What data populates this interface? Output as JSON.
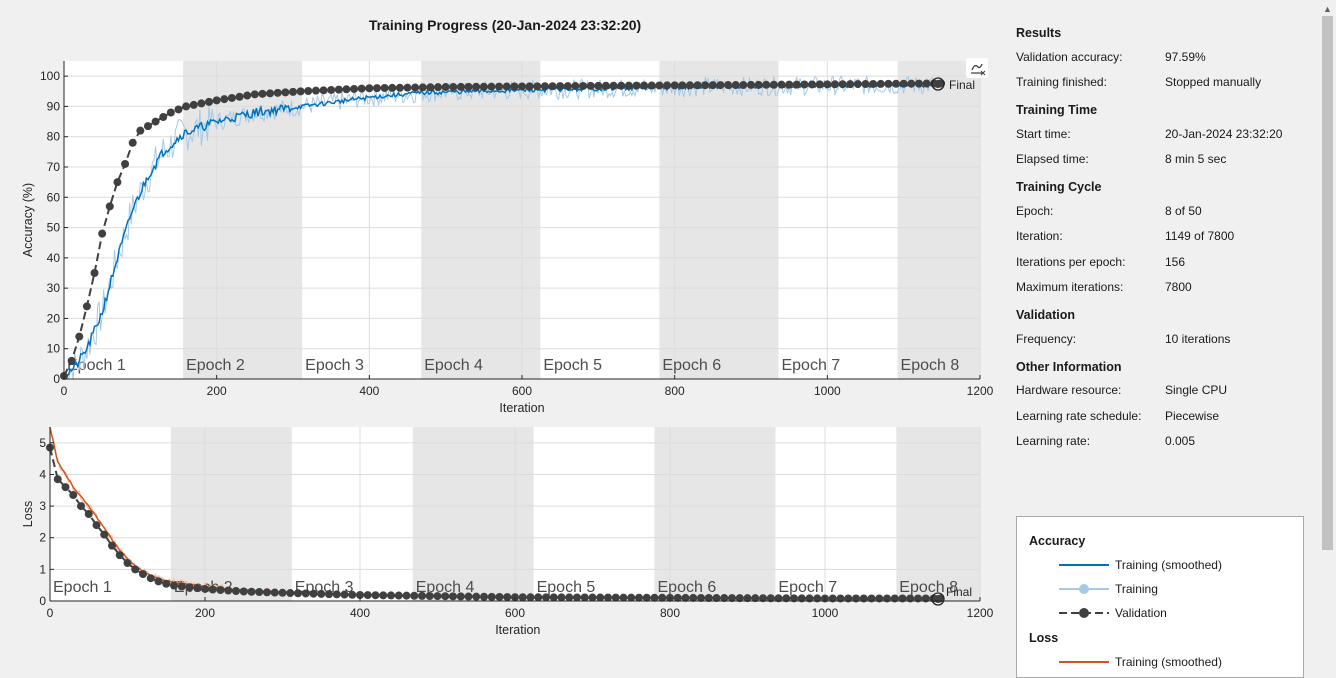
{
  "title": "Training Progress (20-Jan-2024 23:32:20)",
  "info": {
    "sections": [
      {
        "title": "Results",
        "rows": [
          {
            "k": "Validation accuracy:",
            "v": "97.59%"
          },
          {
            "k": "Training finished:",
            "v": "Stopped manually"
          }
        ]
      },
      {
        "title": "Training Time",
        "rows": [
          {
            "k": "Start time:",
            "v": "20-Jan-2024 23:32:20"
          },
          {
            "k": "Elapsed time:",
            "v": "8 min 5 sec"
          }
        ]
      },
      {
        "title": "Training Cycle",
        "rows": [
          {
            "k": "Epoch:",
            "v": "8 of 50"
          },
          {
            "k": "Iteration:",
            "v": "1149 of 7800"
          },
          {
            "k": "Iterations per epoch:",
            "v": "156"
          },
          {
            "k": "Maximum iterations:",
            "v": "7800"
          }
        ]
      },
      {
        "title": "Validation",
        "rows": [
          {
            "k": "Frequency:",
            "v": "10 iterations"
          }
        ]
      },
      {
        "title": "Other Information",
        "rows": [
          {
            "k": "Hardware resource:",
            "v": "Single CPU"
          },
          {
            "k": "Learning rate schedule:",
            "v": "Piecewise"
          },
          {
            "k": "Learning rate:",
            "v": "0.005"
          }
        ]
      }
    ]
  },
  "legend": {
    "accuracy_title": "Accuracy",
    "accuracy_items": [
      "Training (smoothed)",
      "Training",
      "Validation"
    ],
    "loss_title": "Loss",
    "loss_items": [
      "Training (smoothed)"
    ]
  },
  "colors": {
    "acc_smoothed": "#0072bd",
    "acc_training": "#a6c9e6",
    "loss_smoothed": "#d95319",
    "loss_training": "#f0b79a",
    "validation": "#404040",
    "epoch_shade": "#e6e6e6",
    "grid": "#dcdcdc"
  },
  "chart_data": [
    {
      "type": "line",
      "ylabel": "Accuracy (%)",
      "xlabel": "Iteration",
      "xlim": [
        0,
        1200
      ],
      "ylim": [
        0,
        105
      ],
      "x_ticks": [
        0,
        200,
        400,
        600,
        800,
        1000,
        1200
      ],
      "y_ticks": [
        0,
        10,
        20,
        30,
        40,
        50,
        60,
        70,
        80,
        90,
        100
      ],
      "grid": true,
      "epoch_labels": [
        "Epoch 1",
        "Epoch 2",
        "Epoch 3",
        "Epoch 4",
        "Epoch 5",
        "Epoch 6",
        "Epoch 7",
        "Epoch 8"
      ],
      "epoch_boundaries": [
        0,
        156,
        312,
        468,
        624,
        780,
        936,
        1092,
        1200
      ],
      "final_label": "Final",
      "final_point": {
        "x": 1149,
        "y": 97.59
      },
      "series": [
        {
          "name": "Training (smoothed)",
          "points": [
            [
              0,
              1
            ],
            [
              15,
              4
            ],
            [
              30,
              10
            ],
            [
              50,
              22
            ],
            [
              70,
              40
            ],
            [
              90,
              56
            ],
            [
              110,
              67
            ],
            [
              130,
              75
            ],
            [
              156,
              81
            ],
            [
              200,
              85
            ],
            [
              250,
              88
            ],
            [
              312,
              90
            ],
            [
              400,
              93
            ],
            [
              468,
              94.5
            ],
            [
              624,
              95.5
            ],
            [
              780,
              96.2
            ],
            [
              936,
              96.8
            ],
            [
              1092,
              97
            ],
            [
              1149,
              97
            ]
          ]
        },
        {
          "name": "Training",
          "style": "noisy",
          "noise": 4,
          "points": [
            [
              0,
              1
            ],
            [
              15,
              4
            ],
            [
              30,
              10
            ],
            [
              50,
              22
            ],
            [
              70,
              40
            ],
            [
              90,
              56
            ],
            [
              110,
              67
            ],
            [
              130,
              75
            ],
            [
              156,
              81
            ],
            [
              200,
              85
            ],
            [
              250,
              88
            ],
            [
              312,
              90
            ],
            [
              400,
              93
            ],
            [
              468,
              94.5
            ],
            [
              624,
              95.5
            ],
            [
              780,
              96.2
            ],
            [
              936,
              96.8
            ],
            [
              1092,
              97
            ],
            [
              1149,
              97
            ]
          ]
        },
        {
          "name": "Validation",
          "step": 10,
          "points": [
            [
              0,
              1
            ],
            [
              10,
              6
            ],
            [
              20,
              14
            ],
            [
              30,
              24
            ],
            [
              40,
              35
            ],
            [
              50,
              48
            ],
            [
              60,
              57
            ],
            [
              70,
              65
            ],
            [
              80,
              71
            ],
            [
              90,
              78
            ],
            [
              100,
              82
            ],
            [
              120,
              85
            ],
            [
              140,
              88
            ],
            [
              160,
              90
            ],
            [
              200,
              92
            ],
            [
              250,
              94
            ],
            [
              312,
              95
            ],
            [
              400,
              96
            ],
            [
              500,
              96.4
            ],
            [
              700,
              96.8
            ],
            [
              900,
              97.1
            ],
            [
              1149,
              97.59
            ]
          ]
        }
      ]
    },
    {
      "type": "line",
      "ylabel": "Loss",
      "xlabel": "Iteration",
      "xlim": [
        0,
        1200
      ],
      "ylim": [
        0,
        5.5
      ],
      "x_ticks": [
        0,
        200,
        400,
        600,
        800,
        1000,
        1200
      ],
      "y_ticks": [
        0,
        1,
        2,
        3,
        4,
        5
      ],
      "grid": true,
      "epoch_labels": [
        "Epoch 1",
        "Epoch 2",
        "Epoch 3",
        "Epoch 4",
        "Epoch 5",
        "Epoch 6",
        "Epoch 7",
        "Epoch 8"
      ],
      "epoch_boundaries": [
        0,
        156,
        312,
        468,
        624,
        780,
        936,
        1092,
        1200
      ],
      "final_label": "Final",
      "final_point": {
        "x": 1149,
        "y": 0.08
      },
      "series": [
        {
          "name": "Training (smoothed)",
          "points": [
            [
              0,
              5.5
            ],
            [
              10,
              4.4
            ],
            [
              30,
              3.6
            ],
            [
              50,
              3.0
            ],
            [
              70,
              2.3
            ],
            [
              90,
              1.6
            ],
            [
              110,
              1.1
            ],
            [
              130,
              0.8
            ],
            [
              156,
              0.6
            ],
            [
              200,
              0.45
            ],
            [
              250,
              0.35
            ],
            [
              312,
              0.28
            ],
            [
              400,
              0.2
            ],
            [
              624,
              0.12
            ],
            [
              936,
              0.08
            ],
            [
              1149,
              0.07
            ]
          ]
        },
        {
          "name": "Training",
          "style": "noisy",
          "noise": 0.08,
          "points": [
            [
              0,
              5.5
            ],
            [
              10,
              4.4
            ],
            [
              30,
              3.6
            ],
            [
              50,
              3.0
            ],
            [
              70,
              2.3
            ],
            [
              90,
              1.6
            ],
            [
              110,
              1.1
            ],
            [
              130,
              0.8
            ],
            [
              156,
              0.6
            ],
            [
              200,
              0.45
            ],
            [
              250,
              0.35
            ],
            [
              312,
              0.28
            ],
            [
              400,
              0.2
            ],
            [
              624,
              0.12
            ],
            [
              936,
              0.08
            ],
            [
              1149,
              0.07
            ]
          ]
        },
        {
          "name": "Validation",
          "step": 10,
          "points": [
            [
              0,
              4.85
            ],
            [
              10,
              3.85
            ],
            [
              20,
              3.6
            ],
            [
              30,
              3.35
            ],
            [
              40,
              3.0
            ],
            [
              50,
              2.75
            ],
            [
              60,
              2.4
            ],
            [
              70,
              2.1
            ],
            [
              80,
              1.75
            ],
            [
              90,
              1.45
            ],
            [
              100,
              1.2
            ],
            [
              110,
              1.0
            ],
            [
              120,
              0.85
            ],
            [
              130,
              0.72
            ],
            [
              140,
              0.62
            ],
            [
              156,
              0.5
            ],
            [
              200,
              0.38
            ],
            [
              250,
              0.3
            ],
            [
              312,
              0.25
            ],
            [
              400,
              0.19
            ],
            [
              600,
              0.12
            ],
            [
              800,
              0.1
            ],
            [
              1000,
              0.08
            ],
            [
              1149,
              0.08
            ]
          ]
        }
      ]
    }
  ]
}
